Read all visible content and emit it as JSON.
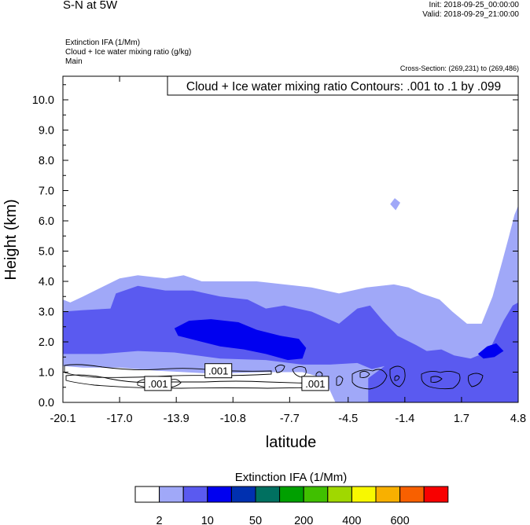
{
  "header": {
    "title": "S-N at 5W",
    "init": "Init: 2018-09-25_00:00:00",
    "valid": "Valid: 2018-09-29_21:00:00",
    "fields": [
      "Extinction IFA   (1/Mm)",
      "Cloud + Ice water mixing ratio   (g/kg)",
      "Main"
    ],
    "cross_section": "Cross-Section: (269,231) to (269,486)"
  },
  "chart_data": {
    "type": "heatmap",
    "title": "S-N at 5W",
    "contour_label": "Cloud + Ice water mixing ratio Contours: .001 to .1 by .099",
    "xlabel": "latitude",
    "ylabel": "Height (km)",
    "xlim": [
      -20.1,
      4.8
    ],
    "ylim": [
      0,
      10.8
    ],
    "xticks": [
      -20.1,
      -17.0,
      -13.9,
      -10.8,
      -7.7,
      -4.5,
      -1.4,
      1.7,
      4.8
    ],
    "xtick_labels": [
      "-20.1",
      "-17.0",
      "-13.9",
      "-10.8",
      "-7.7",
      "-4.5",
      "-1.4",
      "1.7",
      "4.8"
    ],
    "yticks": [
      0,
      1,
      2,
      3,
      4,
      5,
      6,
      7,
      8,
      9,
      10
    ],
    "ytick_labels": [
      "0.0",
      "1.0",
      "2.0",
      "3.0",
      "4.0",
      "5.0",
      "6.0",
      "7.0",
      "8.0",
      "9.0",
      "10.0"
    ],
    "contour_labels": [
      {
        "text": ".001",
        "x": -14.9,
        "y": 0.6
      },
      {
        "text": ".001",
        "x": -11.6,
        "y": 1.02
      },
      {
        "text": ".001",
        "x": -6.3,
        "y": 0.6
      }
    ],
    "colorbar": {
      "title": "Extinction IFA  (1/Mm)",
      "colors": [
        "#ffffff",
        "#a0a8f8",
        "#5a5af0",
        "#0000f0",
        "#0030b0",
        "#007060",
        "#00a000",
        "#40c000",
        "#a0d800",
        "#f8f800",
        "#f8b000",
        "#f86000",
        "#f80000"
      ],
      "labels": [
        {
          "text": "2",
          "boundary": 1
        },
        {
          "text": "10",
          "boundary": 3
        },
        {
          "text": "50",
          "boundary": 5
        },
        {
          "text": "200",
          "boundary": 7
        },
        {
          "text": "400",
          "boundary": 9
        },
        {
          "text": "600",
          "boundary": 11
        }
      ]
    },
    "regions": [
      {
        "level": 1,
        "points": [
          [
            -20.1,
            3.4
          ],
          [
            -19.7,
            3.3
          ],
          [
            -19.0,
            3.5
          ],
          [
            -18.0,
            3.8
          ],
          [
            -17.0,
            4.1
          ],
          [
            -16.0,
            4.2
          ],
          [
            -14.5,
            4.1
          ],
          [
            -13.5,
            4.2
          ],
          [
            -12.5,
            4.0
          ],
          [
            -11.0,
            4.0
          ],
          [
            -9.5,
            4.0
          ],
          [
            -8.0,
            3.9
          ],
          [
            -6.5,
            3.8
          ],
          [
            -5.0,
            3.6
          ],
          [
            -3.5,
            3.8
          ],
          [
            -2.0,
            3.9
          ],
          [
            -1.2,
            3.8
          ],
          [
            -0.5,
            3.6
          ],
          [
            0.5,
            3.4
          ],
          [
            1.2,
            3.0
          ],
          [
            2.0,
            2.6
          ],
          [
            2.8,
            2.6
          ],
          [
            3.4,
            3.5
          ],
          [
            3.9,
            4.6
          ],
          [
            4.3,
            5.5
          ],
          [
            4.6,
            6.2
          ],
          [
            4.8,
            6.5
          ],
          [
            4.8,
            0
          ],
          [
            -5.2,
            0
          ],
          [
            -5.8,
            0.8
          ],
          [
            -7.0,
            1.0
          ],
          [
            -9.0,
            1.0
          ],
          [
            -12.0,
            0.95
          ],
          [
            -15.0,
            1.05
          ],
          [
            -17.0,
            1.15
          ],
          [
            -19.0,
            1.15
          ],
          [
            -20.1,
            1.2
          ]
        ]
      },
      {
        "level": 2,
        "points": [
          [
            -20.1,
            3.0
          ],
          [
            -19.0,
            3.05
          ],
          [
            -17.5,
            3.1
          ],
          [
            -17.2,
            3.6
          ],
          [
            -16.0,
            3.85
          ],
          [
            -14.5,
            3.7
          ],
          [
            -13.0,
            3.7
          ],
          [
            -11.5,
            3.5
          ],
          [
            -10.0,
            3.4
          ],
          [
            -9.0,
            3.1
          ],
          [
            -8.0,
            3.2
          ],
          [
            -6.5,
            3.0
          ],
          [
            -5.0,
            2.6
          ],
          [
            -4.0,
            3.1
          ],
          [
            -3.3,
            3.2
          ],
          [
            -2.6,
            2.7
          ],
          [
            -1.8,
            2.2
          ],
          [
            -0.8,
            1.9
          ],
          [
            -0.2,
            1.7
          ],
          [
            0.6,
            1.75
          ],
          [
            1.3,
            1.55
          ],
          [
            2.2,
            1.45
          ],
          [
            3.2,
            1.7
          ],
          [
            4.0,
            2.7
          ],
          [
            4.5,
            3.2
          ],
          [
            4.8,
            3.3
          ],
          [
            4.8,
            0
          ],
          [
            -3.4,
            0
          ],
          [
            -3.4,
            0.8
          ],
          [
            -2.5,
            1.2
          ],
          [
            -3.2,
            1.1
          ],
          [
            -4.0,
            1.3
          ],
          [
            -5.5,
            1.25
          ],
          [
            -7.0,
            1.25
          ],
          [
            -9.0,
            1.4
          ],
          [
            -11.5,
            1.45
          ],
          [
            -14.0,
            1.65
          ],
          [
            -16.0,
            1.7
          ],
          [
            -18.0,
            1.6
          ],
          [
            -20.1,
            1.6
          ]
        ]
      },
      {
        "level": 3,
        "points": [
          [
            -14.0,
            2.45
          ],
          [
            -13.2,
            2.7
          ],
          [
            -12.0,
            2.75
          ],
          [
            -10.5,
            2.65
          ],
          [
            -9.5,
            2.4
          ],
          [
            -8.2,
            2.2
          ],
          [
            -7.2,
            2.1
          ],
          [
            -6.8,
            1.8
          ],
          [
            -7.0,
            1.45
          ],
          [
            -7.8,
            1.4
          ],
          [
            -9.0,
            1.6
          ],
          [
            -10.2,
            1.75
          ],
          [
            -11.5,
            1.85
          ],
          [
            -12.8,
            2.05
          ],
          [
            -13.8,
            2.2
          ]
        ]
      },
      {
        "level": 3,
        "points": [
          [
            2.6,
            1.6
          ],
          [
            3.1,
            1.85
          ],
          [
            3.6,
            1.95
          ],
          [
            4.0,
            1.7
          ],
          [
            3.5,
            1.5
          ],
          [
            2.9,
            1.45
          ]
        ]
      },
      {
        "level": 1,
        "points": [
          [
            -2.2,
            6.55
          ],
          [
            -1.95,
            6.75
          ],
          [
            -1.65,
            6.6
          ],
          [
            -1.9,
            6.35
          ]
        ]
      }
    ]
  }
}
